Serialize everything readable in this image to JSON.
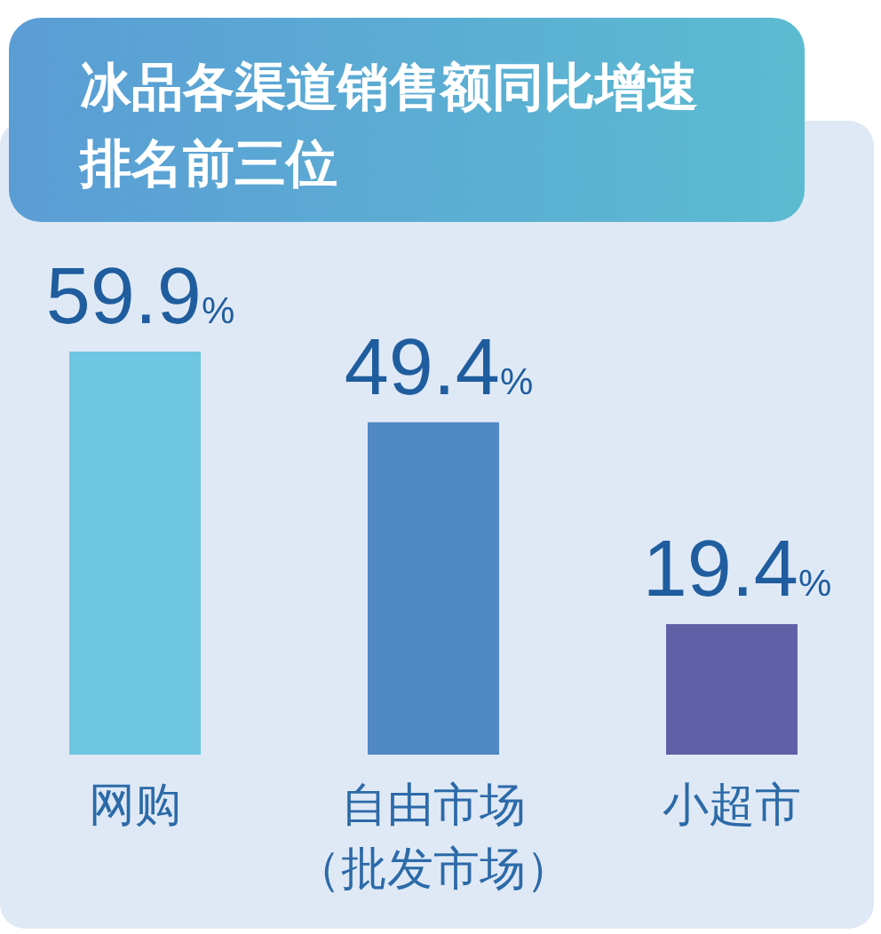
{
  "chart_data": {
    "type": "bar",
    "title": "冰品各渠道销售额同比增速排名前三位",
    "categories": [
      "网购",
      "自由市场（批发市场）",
      "小超市"
    ],
    "values": [
      59.9,
      49.4,
      19.4
    ],
    "colors": [
      "#6ec6e2",
      "#5089c5",
      "#6160a6"
    ],
    "value_labels": [
      "59.9%",
      "49.4%",
      "19.4%"
    ]
  }
}
